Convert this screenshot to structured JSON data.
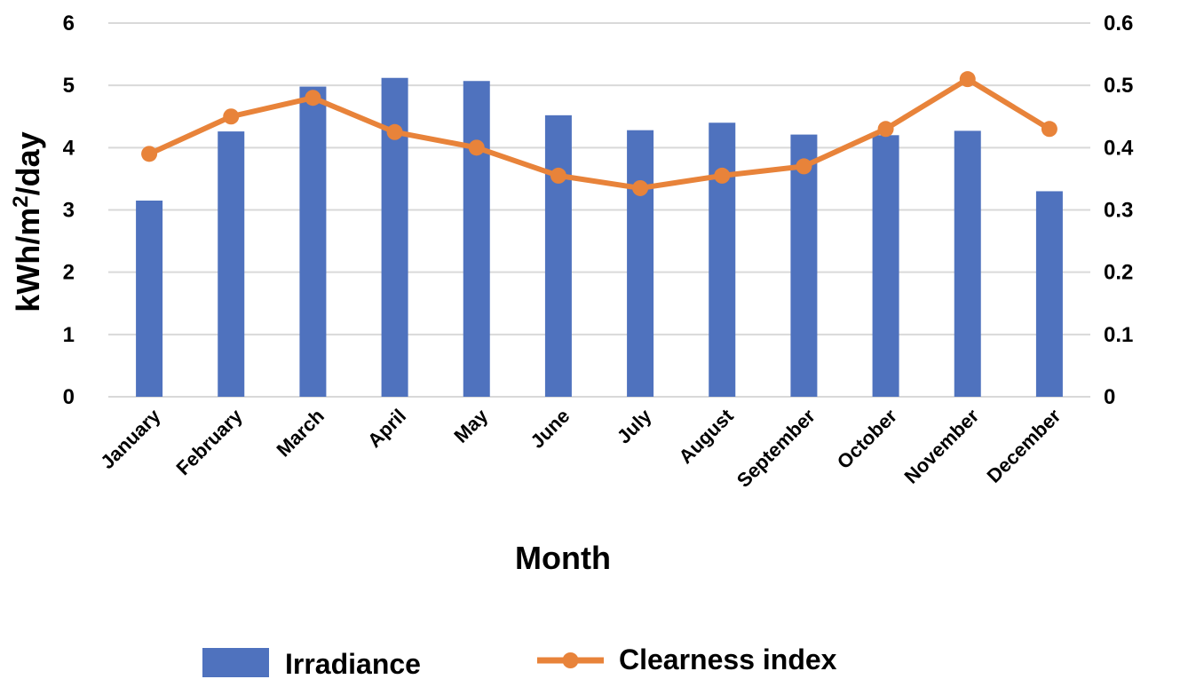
{
  "chart_data": {
    "type": "bar",
    "categories": [
      "January",
      "February",
      "March",
      "April",
      "May",
      "June",
      "July",
      "August",
      "September",
      "October",
      "November",
      "December"
    ],
    "series": [
      {
        "name": "Irradiance",
        "type": "bar",
        "axis": "left",
        "color": "#4F72BE",
        "values": [
          3.15,
          4.26,
          4.98,
          5.12,
          5.07,
          4.52,
          4.28,
          4.4,
          4.21,
          4.2,
          4.27,
          3.3
        ]
      },
      {
        "name": "Clearness index",
        "type": "line",
        "axis": "right",
        "color": "#E8833A",
        "marker": "circle",
        "values": [
          0.39,
          0.45,
          0.48,
          0.425,
          0.4,
          0.355,
          0.335,
          0.355,
          0.37,
          0.43,
          0.51,
          0.43
        ]
      }
    ],
    "xlabel": "Month",
    "ylabel": "kWh/m²/day",
    "ylim": [
      0,
      6
    ],
    "y2lim": [
      0,
      0.6
    ],
    "y_ticks": [
      "0",
      "1",
      "2",
      "3",
      "4",
      "5",
      "6"
    ],
    "y2_ticks": [
      "0",
      "0.1",
      "0.2",
      "0.3",
      "0.4",
      "0.5",
      "0.6"
    ],
    "grid": true,
    "gridline_color": "#D9D9D9",
    "legend_position": "bottom"
  }
}
